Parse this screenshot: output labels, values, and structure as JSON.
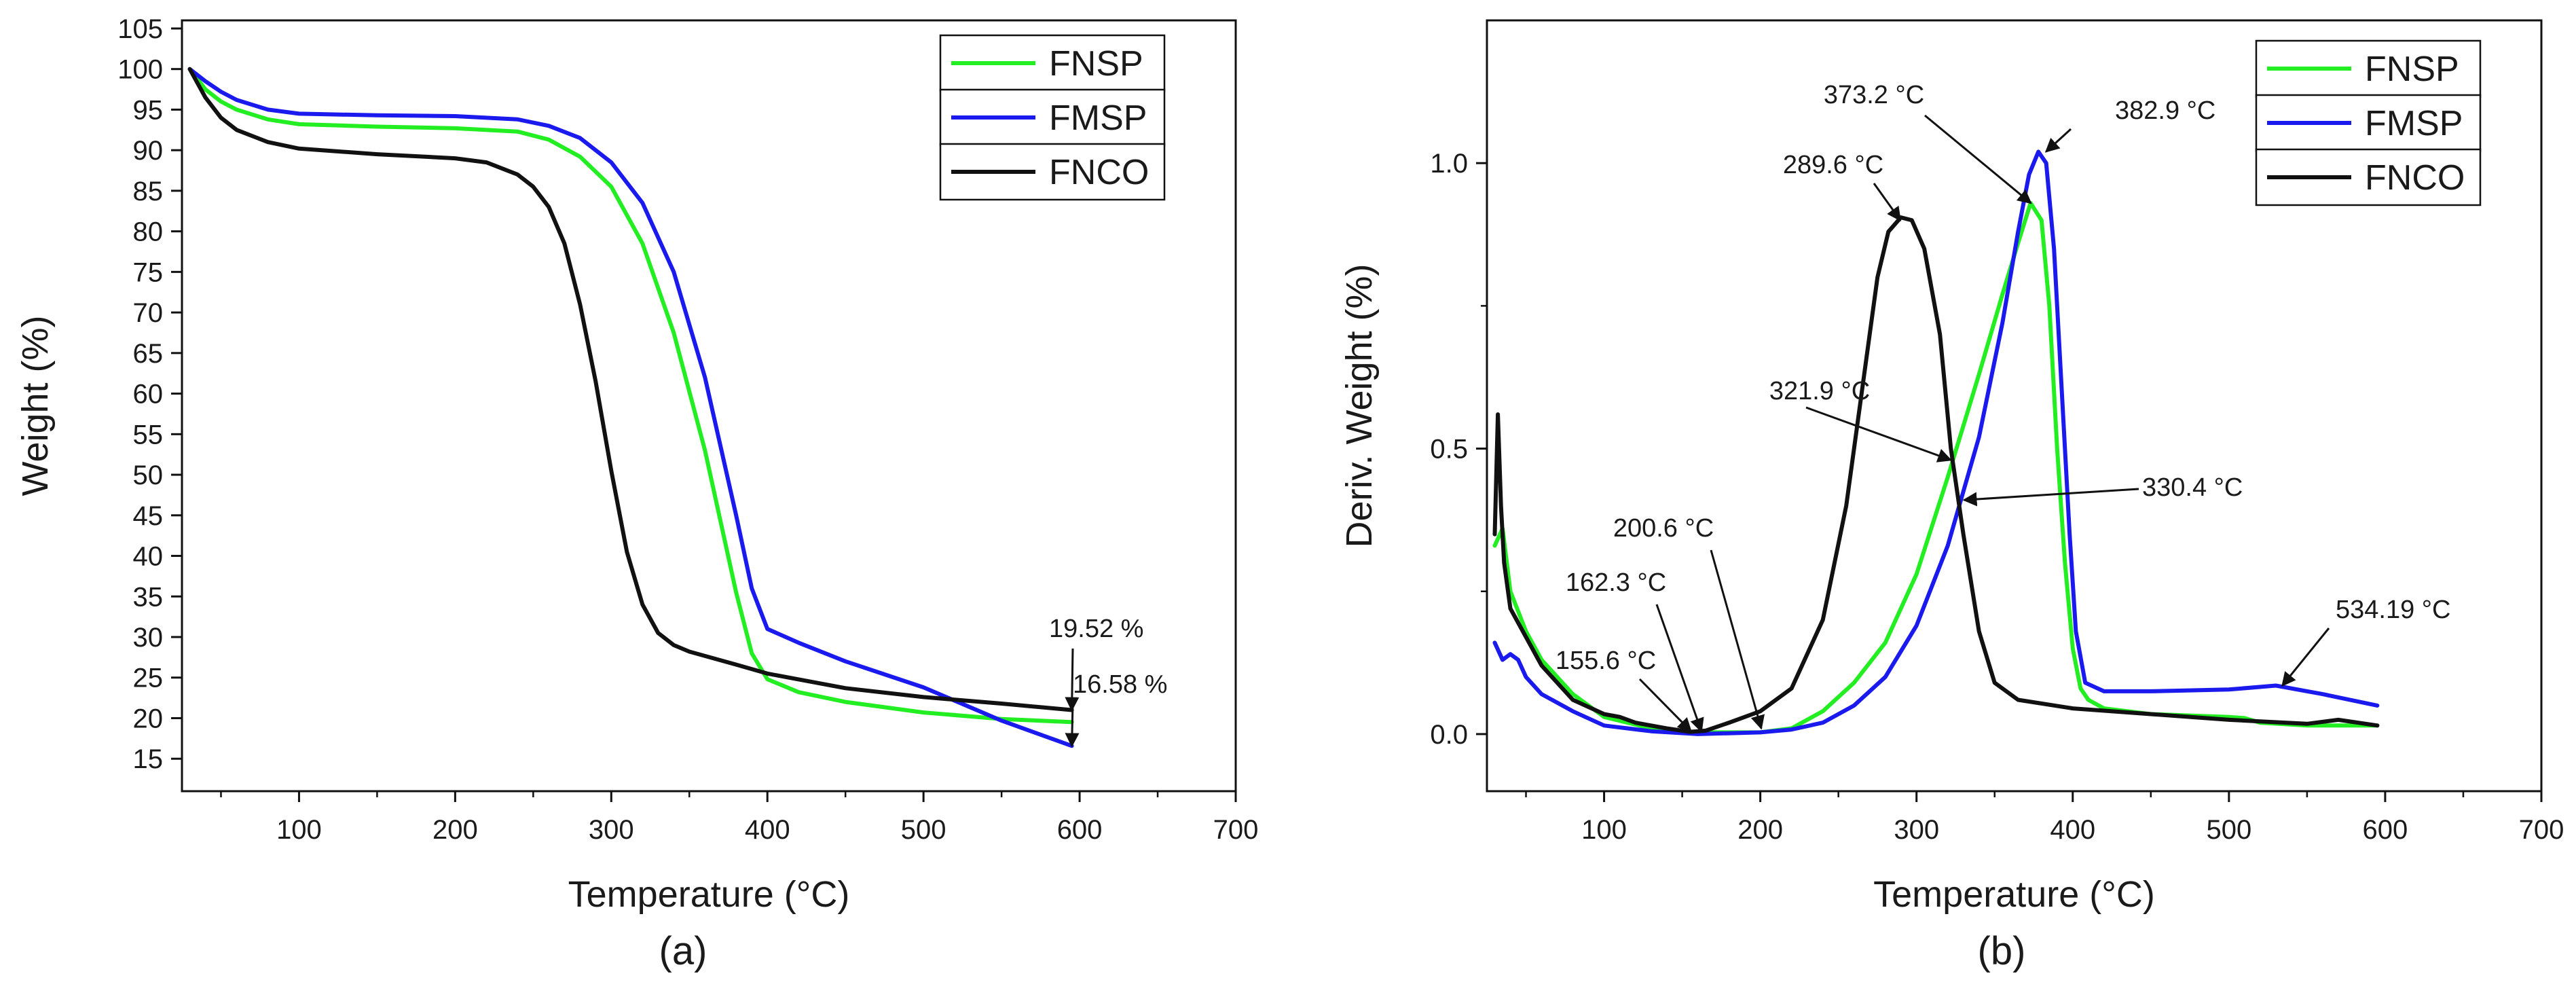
{
  "chart_data": [
    {
      "type": "line",
      "panel_label": "(a)",
      "xlabel": "Temperature (°C)",
      "ylabel": "Weight (%)",
      "xlim": [
        25,
        700
      ],
      "ylim": [
        11,
        106
      ],
      "xticks": [
        100,
        200,
        300,
        400,
        500,
        600,
        700
      ],
      "yticks": [
        15,
        20,
        25,
        30,
        35,
        40,
        45,
        50,
        55,
        60,
        65,
        70,
        75,
        80,
        85,
        90,
        95,
        100,
        105
      ],
      "grid": false,
      "legend_position": "top-right",
      "series": [
        {
          "name": "FNSP",
          "color": "#22ee22",
          "x": [
            30,
            40,
            50,
            60,
            80,
            100,
            150,
            200,
            240,
            260,
            280,
            300,
            320,
            340,
            360,
            380,
            390,
            400,
            420,
            450,
            500,
            550,
            595
          ],
          "y": [
            100,
            97.5,
            96,
            95,
            93.8,
            93.2,
            92.9,
            92.7,
            92.3,
            91.3,
            89.2,
            85.5,
            78.5,
            67.5,
            53,
            35.5,
            28,
            24.8,
            23.2,
            22,
            20.7,
            19.9,
            19.52
          ]
        },
        {
          "name": "FMSP",
          "color": "#1a1aee",
          "x": [
            30,
            40,
            50,
            60,
            80,
            100,
            150,
            200,
            240,
            260,
            280,
            300,
            320,
            340,
            360,
            380,
            390,
            400,
            420,
            450,
            500,
            550,
            595
          ],
          "y": [
            100,
            98.5,
            97.2,
            96.2,
            95,
            94.5,
            94.3,
            94.2,
            93.8,
            93,
            91.5,
            88.5,
            83.5,
            75,
            62,
            45,
            36,
            31,
            29.3,
            27,
            23.8,
            19.7,
            16.58
          ]
        },
        {
          "name": "FNCO",
          "color": "#111111",
          "x": [
            30,
            40,
            50,
            60,
            80,
            100,
            150,
            200,
            220,
            240,
            250,
            260,
            270,
            280,
            290,
            300,
            310,
            320,
            330,
            340,
            350,
            380,
            400,
            450,
            500,
            550,
            595
          ],
          "y": [
            100,
            96.5,
            94,
            92.5,
            91,
            90.2,
            89.5,
            89,
            88.5,
            87,
            85.5,
            83,
            78.5,
            71,
            61.5,
            50.5,
            40.5,
            34,
            30.5,
            29,
            28.2,
            26.6,
            25.5,
            23.7,
            22.6,
            21.8,
            21
          ]
        }
      ],
      "annotations": [
        {
          "text": "19.52 %",
          "target": {
            "x": 595,
            "y": 21
          }
        },
        {
          "text": "16.58 %",
          "target": {
            "x": 595,
            "y": 16.58
          }
        }
      ]
    },
    {
      "type": "line",
      "panel_label": "(b)",
      "xlabel": "Temperature (°C)",
      "ylabel": "Deriv. Weight (%)",
      "xlim": [
        25,
        700
      ],
      "ylim": [
        -0.1,
        1.25
      ],
      "xticks": [
        100,
        200,
        300,
        400,
        500,
        600,
        700
      ],
      "yticks": [
        0.0,
        0.5,
        1.0
      ],
      "ytick_labels": [
        "0.0",
        "0.5",
        "1.0"
      ],
      "grid": false,
      "legend_position": "top-right",
      "series": [
        {
          "name": "FNSP",
          "color": "#22ee22",
          "x": [
            30,
            35,
            40,
            50,
            60,
            80,
            100,
            130,
            160,
            200,
            220,
            240,
            260,
            280,
            300,
            320,
            340,
            355,
            365,
            373,
            380,
            385,
            390,
            395,
            400,
            405,
            410,
            420,
            450,
            500,
            510,
            520,
            550,
            580,
            595
          ],
          "y": [
            0.33,
            0.36,
            0.25,
            0.18,
            0.13,
            0.07,
            0.03,
            0.01,
            0.003,
            0.003,
            0.01,
            0.04,
            0.09,
            0.16,
            0.28,
            0.45,
            0.63,
            0.77,
            0.86,
            0.93,
            0.9,
            0.75,
            0.5,
            0.3,
            0.15,
            0.08,
            0.06,
            0.045,
            0.035,
            0.03,
            0.028,
            0.02,
            0.015,
            0.015,
            0.015
          ]
        },
        {
          "name": "FMSP",
          "color": "#1a1aee",
          "x": [
            30,
            35,
            40,
            45,
            50,
            60,
            80,
            100,
            130,
            160,
            200,
            220,
            240,
            260,
            280,
            300,
            320,
            340,
            355,
            365,
            372,
            378,
            383,
            388,
            393,
            398,
            402,
            408,
            420,
            450,
            500,
            530,
            560,
            595
          ],
          "y": [
            0.16,
            0.13,
            0.14,
            0.13,
            0.1,
            0.07,
            0.04,
            0.015,
            0.005,
            0.0,
            0.003,
            0.008,
            0.02,
            0.05,
            0.1,
            0.19,
            0.33,
            0.52,
            0.72,
            0.88,
            0.98,
            1.02,
            1.0,
            0.85,
            0.6,
            0.35,
            0.18,
            0.09,
            0.075,
            0.075,
            0.078,
            0.085,
            0.07,
            0.05
          ]
        },
        {
          "name": "FNCO",
          "color": "#111111",
          "x": [
            30,
            32,
            34,
            36,
            40,
            50,
            60,
            80,
            100,
            110,
            120,
            140,
            155,
            165,
            180,
            200,
            220,
            240,
            255,
            265,
            275,
            282,
            290,
            297,
            305,
            315,
            322,
            330,
            340,
            350,
            365,
            400,
            450,
            500,
            550,
            570,
            595
          ],
          "y": [
            0.35,
            0.56,
            0.4,
            0.3,
            0.22,
            0.17,
            0.12,
            0.06,
            0.035,
            0.03,
            0.02,
            0.01,
            0.004,
            0.006,
            0.02,
            0.04,
            0.08,
            0.2,
            0.4,
            0.6,
            0.8,
            0.88,
            0.905,
            0.9,
            0.85,
            0.7,
            0.5,
            0.35,
            0.18,
            0.09,
            0.06,
            0.045,
            0.035,
            0.025,
            0.018,
            0.025,
            0.015
          ]
        }
      ],
      "annotations": [
        {
          "text": "373.2 °C",
          "target": {
            "x": 373.2,
            "y": 0.93
          }
        },
        {
          "text": "382.9 °C",
          "target": {
            "x": 382.9,
            "y": 1.02
          }
        },
        {
          "text": "289.6 °C",
          "target": {
            "x": 289.6,
            "y": 0.9
          }
        },
        {
          "text": "321.9 °C",
          "target": {
            "x": 321.9,
            "y": 0.48
          }
        },
        {
          "text": "330.4 °C",
          "target": {
            "x": 330.4,
            "y": 0.41
          }
        },
        {
          "text": "200.6 °C",
          "target": {
            "x": 200.6,
            "y": 0.01
          }
        },
        {
          "text": "162.3 °C",
          "target": {
            "x": 162.3,
            "y": 0.005
          }
        },
        {
          "text": "155.6 °C",
          "target": {
            "x": 155.6,
            "y": 0.005
          }
        },
        {
          "text": "534.19 °C",
          "target": {
            "x": 534.19,
            "y": 0.085
          }
        }
      ]
    }
  ]
}
